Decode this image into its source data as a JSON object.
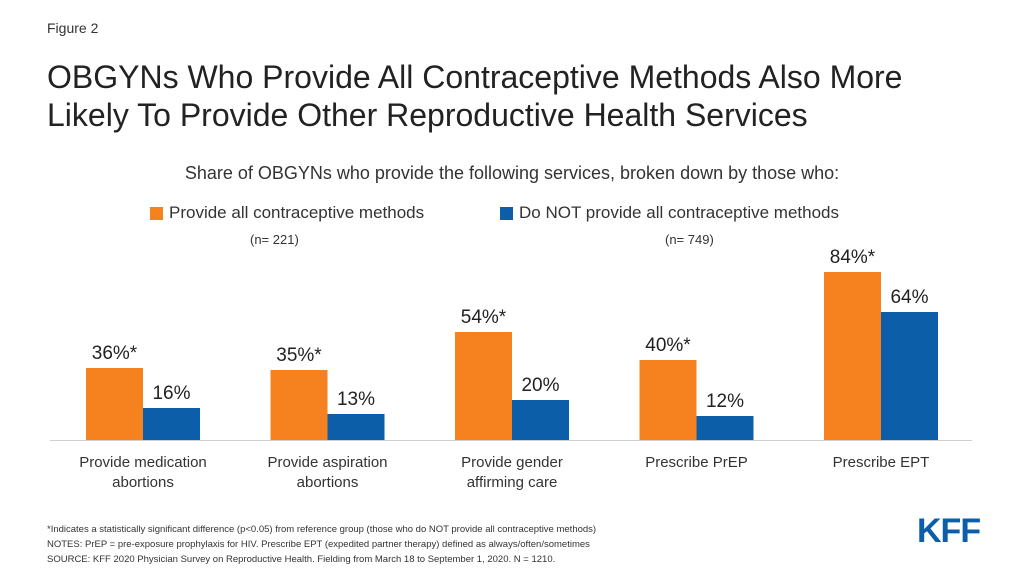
{
  "figure_label": "Figure 2",
  "title_line1": "OBGYNs Who Provide All Contraceptive Methods Also More",
  "title_line2": "Likely To Provide Other Reproductive Health Services",
  "notes": [
    "*Indicates a statistically significant difference  (p<0.05) from reference group (those who do NOT provide  all contraceptive  methods)",
    "NOTES: PrEP = pre-exposure  prophylaxis for HIV. Prescribe EPT (expedited partner therapy) defined as always/often/sometimes",
    "SOURCE: KFF 2020 Physician Survey on Reproductive  Health. Fielding from March 18 to September 1, 2020. N = 1210."
  ],
  "logo": "KFF",
  "colors": {
    "orange": "#f5821f",
    "blue": "#0d5ea8"
  },
  "chart_data": {
    "type": "bar",
    "subtitle": "Share of OBGYNs who provide the following services, broken down by those who:",
    "categories": [
      [
        "Provide medication",
        "abortions"
      ],
      [
        "Provide aspiration",
        "abortions"
      ],
      [
        "Provide gender",
        "affirming care"
      ],
      [
        "Prescribe PrEP"
      ],
      [
        "Prescribe EPT"
      ]
    ],
    "series": [
      {
        "name": "Provide all contraceptive methods",
        "n_label": "(n= 221)",
        "color": "#f5821f",
        "values": [
          36,
          35,
          54,
          40,
          84
        ],
        "labels": [
          "36%*",
          "35%*",
          "54%*",
          "40%*",
          "84%*"
        ]
      },
      {
        "name": "Do NOT provide all contraceptive methods",
        "n_label": "(n= 749)",
        "color": "#0d5ea8",
        "values": [
          16,
          13,
          20,
          12,
          64
        ],
        "labels": [
          "16%",
          "13%",
          "20%",
          "12%",
          "64%"
        ]
      }
    ],
    "ylim": [
      0,
      100
    ],
    "grid": false,
    "legend_placement": "top"
  }
}
